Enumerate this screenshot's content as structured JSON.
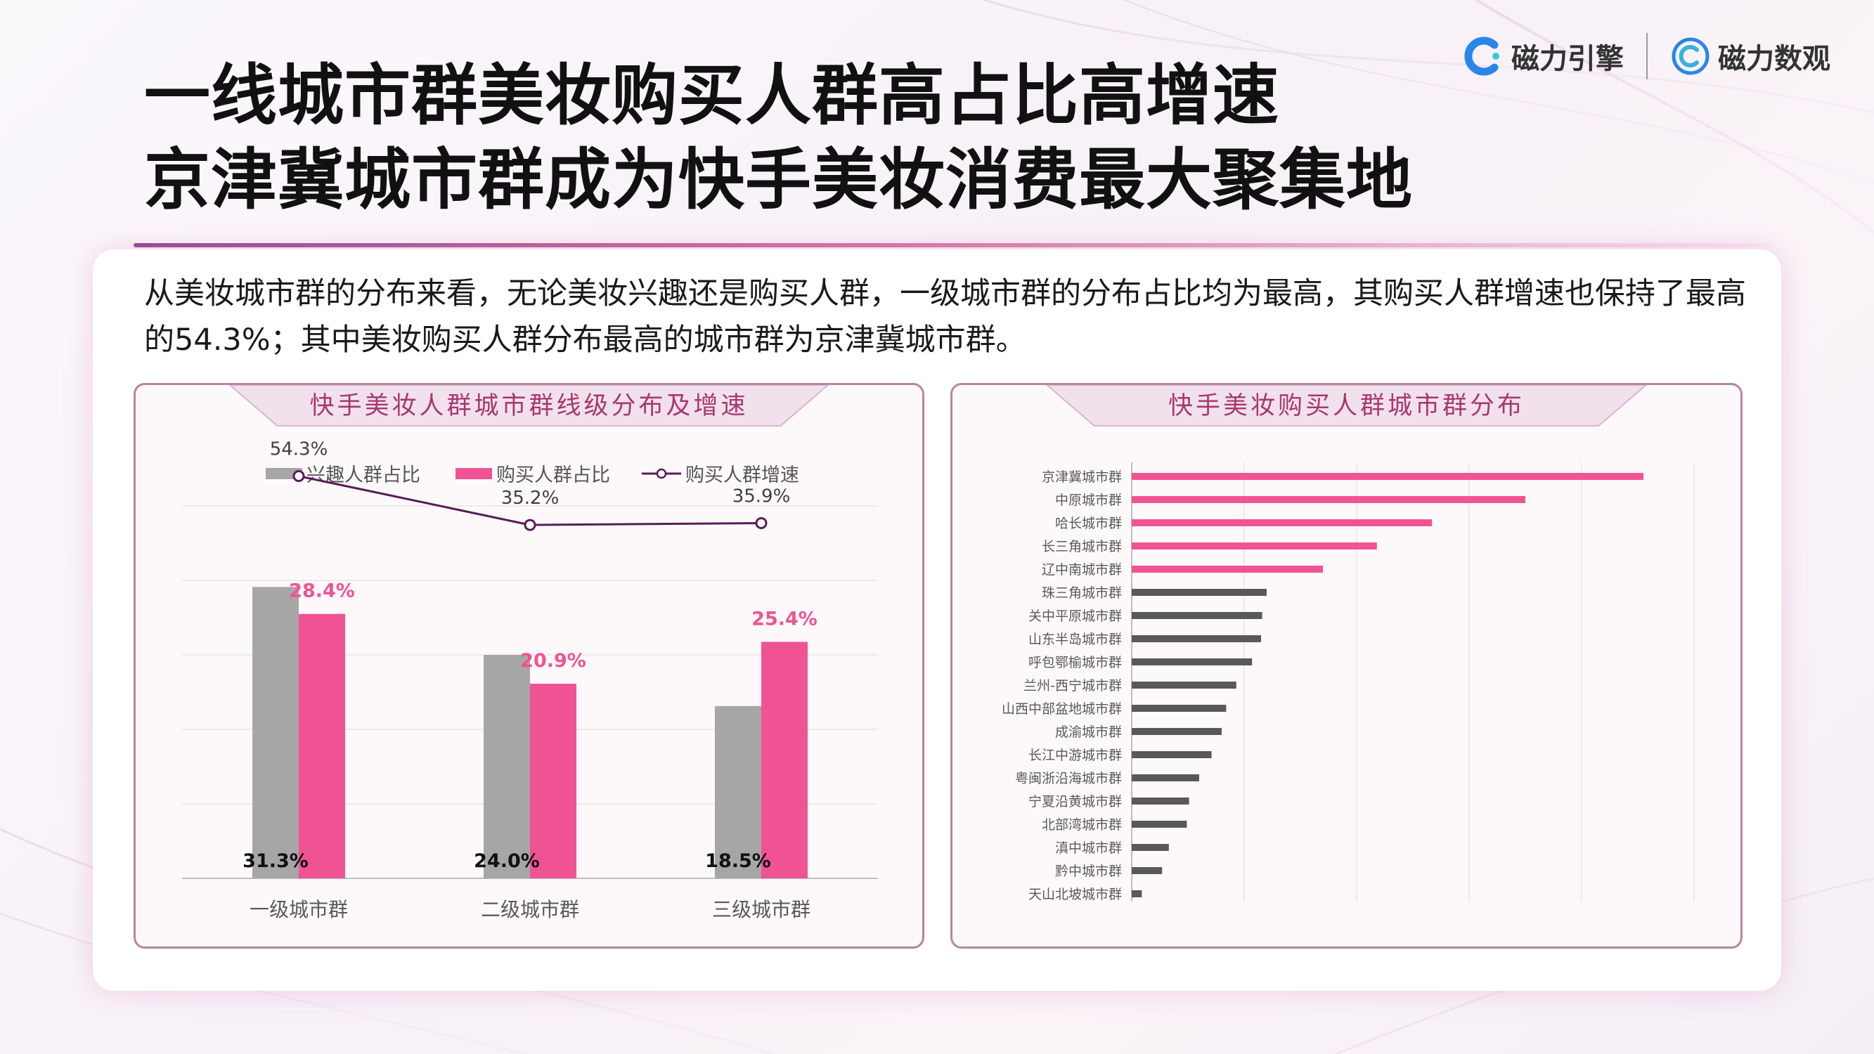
{
  "header": {
    "title_line1": "一线城市群美妆购买人群高占比高增速",
    "title_line2": "京津冀城市群成为快手美妆消费最大聚集地"
  },
  "brands": [
    {
      "name": "磁力引擎",
      "icon": "c-ring-blue-icon"
    },
    {
      "name": "磁力数观",
      "icon": "c-concentric-blue-icon"
    }
  ],
  "description": "从美妆城市群的分布来看，无论美妆兴趣还是购买人群，一级城市群的分布占比均为最高，其购买人群增速也保持了最高的54.3%；其中美妆购买人群分布最高的城市群为京津冀城市群。",
  "colors": {
    "gray_bar": "#a6a6a6",
    "pink_bar": "#f05394",
    "line": "#5a1a5a",
    "dark_bar": "#595959",
    "card_title": "#a8386f"
  },
  "chart_data": [
    {
      "type": "bar",
      "title": "快手美妆人群城市群线级分布及增速",
      "categories": [
        "一级城市群",
        "二级城市群",
        "三级城市群"
      ],
      "series": [
        {
          "name": "兴趣人群占比",
          "kind": "bar",
          "color": "#a6a6a6",
          "values": [
            31.3,
            24.0,
            18.5
          ],
          "labels": [
            "31.3%",
            "24.0%",
            "18.5%"
          ]
        },
        {
          "name": "购买人群占比",
          "kind": "bar",
          "color": "#f05394",
          "values": [
            28.4,
            20.9,
            25.4
          ],
          "labels": [
            "28.4%",
            "20.9%",
            "25.4%"
          ]
        },
        {
          "name": "购买人群增速",
          "kind": "line",
          "color": "#5a1a5a",
          "values": [
            54.3,
            35.2,
            35.9
          ],
          "labels": [
            "54.3%",
            "35.2%",
            "35.9%"
          ]
        }
      ],
      "legend_position": "top",
      "grid": true
    },
    {
      "type": "bar",
      "orientation": "horizontal",
      "title": "快手美妆购买人群城市群分布",
      "categories": [
        "京津冀城市群",
        "中原城市群",
        "哈长城市群",
        "长三角城市群",
        "辽中南城市群",
        "珠三角城市群",
        "关中平原城市群",
        "山东半岛城市群",
        "呼包鄂榆城市群",
        "兰州-西宁城市群",
        "山西中部盆地城市群",
        "成渝城市群",
        "长江中游城市群",
        "粤闽浙沿海城市群",
        "宁夏沿黄城市群",
        "北部湾城市群",
        "滇中城市群",
        "黔中城市群",
        "天山北坡城市群"
      ],
      "values": [
        4.55,
        3.5,
        2.67,
        2.18,
        1.7,
        1.2,
        1.16,
        1.15,
        1.07,
        0.93,
        0.84,
        0.8,
        0.71,
        0.6,
        0.51,
        0.49,
        0.33,
        0.27,
        0.09
      ],
      "highlight_top": 5,
      "highlight_color": "#f05394",
      "other_color": "#595959",
      "xlim": [
        0,
        5
      ],
      "grid": true
    }
  ]
}
